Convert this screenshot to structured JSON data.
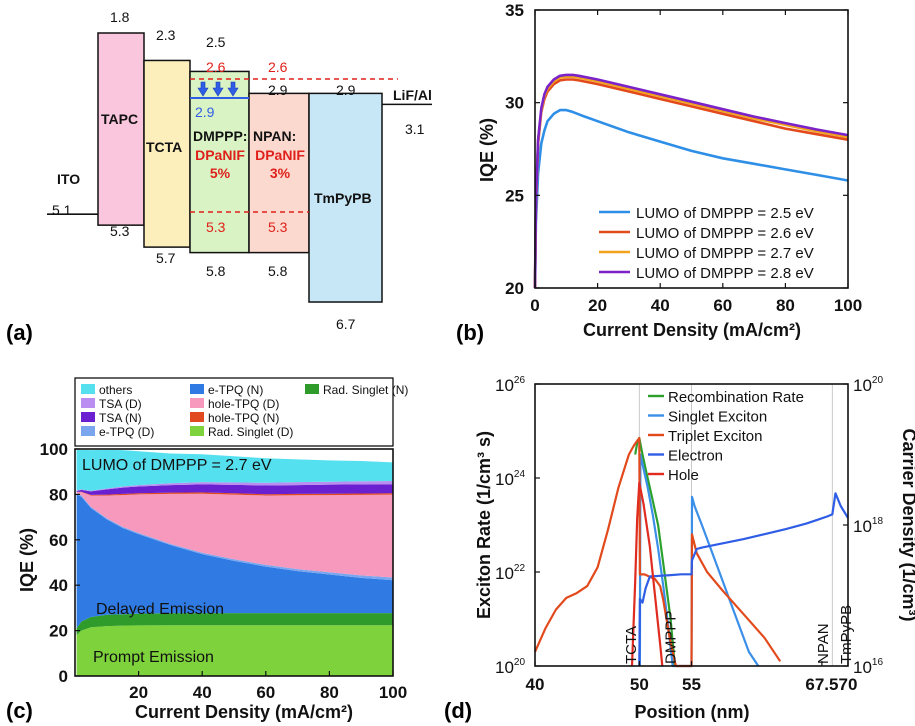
{
  "panel_labels": {
    "a": "(a)",
    "b": "(b)",
    "c": "(c)",
    "d": "(d)"
  },
  "chart_data": [
    {
      "panel": "a",
      "type": "diagram",
      "title": "Energy level diagram",
      "unit": "eV",
      "layers": [
        {
          "name": "ITO",
          "work_function": "5.1",
          "fill": ""
        },
        {
          "name": "TAPC",
          "top": "1.8",
          "bottom": "5.3",
          "fill": "#f9c6dd"
        },
        {
          "name": "TCTA",
          "top": "2.3",
          "bottom": "5.7",
          "fill": "#fcefbc"
        },
        {
          "name": "DMPPP:",
          "dopant": "DPaNIF",
          "conc": "5%",
          "top": "2.5",
          "bottom": "5.8",
          "dopant_lumo": "2.6",
          "dopant_homo": "5.3",
          "host_lumo_alt": "2.9",
          "fill": "#d9f3c5"
        },
        {
          "name": "NPAN:",
          "dopant": "DPaNIF",
          "conc": "3%",
          "top": "2.9",
          "bottom": "5.8",
          "dopant_lumo": "2.6",
          "dopant_homo": "5.3",
          "fill": "#fbd9cf"
        },
        {
          "name": "TmPyPB",
          "top": "2.9",
          "bottom": "6.7",
          "fill": "#c7e6f6"
        },
        {
          "name": "LiF/Al",
          "work_function": "3.1",
          "fill": ""
        }
      ],
      "colors": {
        "dopant": "#e0201b",
        "transfer": "#2f5de6"
      }
    },
    {
      "panel": "b",
      "type": "line",
      "xlabel": "Current Density (mA/cm²)",
      "ylabel": "IQE (%)",
      "xlim": [
        0,
        100
      ],
      "ylim": [
        20,
        35
      ],
      "xticks": [
        0,
        20,
        40,
        60,
        80,
        100
      ],
      "yticks": [
        20,
        25,
        30,
        35
      ],
      "series": [
        {
          "name": "LUMO of DMPPP = 2.5 eV",
          "color": "#2f8fe6",
          "x": [
            0,
            0.3,
            1,
            2,
            3,
            4,
            6,
            8,
            10,
            12,
            15,
            20,
            30,
            40,
            50,
            60,
            70,
            80,
            90,
            100
          ],
          "y": [
            20,
            23.5,
            26.2,
            27.8,
            28.5,
            29.0,
            29.4,
            29.6,
            29.6,
            29.5,
            29.3,
            29.0,
            28.4,
            27.9,
            27.4,
            27.0,
            26.7,
            26.4,
            26.1,
            25.8
          ]
        },
        {
          "name": "LUMO of DMPPP = 2.6 eV",
          "color": "#e24a1c",
          "x": [
            0,
            0.3,
            1,
            2,
            3,
            4,
            6,
            8,
            10,
            12,
            14,
            20,
            30,
            40,
            50,
            60,
            70,
            80,
            90,
            100
          ],
          "y": [
            20,
            24.5,
            27.8,
            29.5,
            30.2,
            30.6,
            31.0,
            31.2,
            31.25,
            31.25,
            31.2,
            31.0,
            30.6,
            30.2,
            29.8,
            29.4,
            29.0,
            28.6,
            28.3,
            28.0
          ]
        },
        {
          "name": "LUMO of DMPPP = 2.7 eV",
          "color": "#f2a21b",
          "x": [
            0,
            0.3,
            1,
            2,
            3,
            4,
            6,
            8,
            10,
            12,
            14,
            20,
            30,
            40,
            50,
            60,
            70,
            80,
            90,
            100
          ],
          "y": [
            20,
            24.6,
            27.9,
            29.6,
            30.35,
            30.75,
            31.15,
            31.35,
            31.4,
            31.4,
            31.35,
            31.15,
            30.75,
            30.35,
            29.95,
            29.55,
            29.15,
            28.8,
            28.45,
            28.15
          ]
        },
        {
          "name": "LUMO of DMPPP = 2.8 eV",
          "color": "#7b22c8",
          "x": [
            0,
            0.3,
            1,
            2,
            3,
            4,
            6,
            8,
            10,
            12,
            14,
            20,
            30,
            40,
            50,
            60,
            70,
            80,
            90,
            100
          ],
          "y": [
            20,
            24.7,
            28.0,
            29.7,
            30.45,
            30.85,
            31.25,
            31.45,
            31.5,
            31.5,
            31.45,
            31.25,
            30.85,
            30.45,
            30.05,
            29.65,
            29.25,
            28.9,
            28.55,
            28.25
          ]
        }
      ]
    },
    {
      "panel": "c",
      "type": "area",
      "xlabel": "Current Density (mA/cm²)",
      "ylabel": "IQE (%)",
      "xlim": [
        0,
        100
      ],
      "ylim": [
        0,
        100
      ],
      "xticks": [
        20,
        40,
        60,
        80,
        100
      ],
      "yticks": [
        0,
        20,
        40,
        60,
        80,
        100
      ],
      "annotation": "LUMO of DMPPP = 2.7 eV",
      "region_labels": [
        "Delayed Emission",
        "Prompt Emission"
      ],
      "x": [
        0.5,
        2,
        5,
        10,
        15,
        20,
        30,
        40,
        50,
        60,
        70,
        80,
        90,
        100
      ],
      "series": [
        {
          "name": "Rad. Singlet (D)",
          "color": "#7ed33c",
          "values": [
            18,
            20,
            21.5,
            22,
            22.2,
            22.3,
            22.4,
            22.4,
            22.4,
            22.4,
            22.4,
            22.4,
            22.4,
            22.4
          ]
        },
        {
          "name": "Rad. Singlet (N)",
          "color": "#2e9b2b",
          "values": [
            3,
            4,
            4.5,
            5,
            5,
            5.2,
            5.3,
            5.3,
            5.3,
            5.3,
            5.3,
            5.3,
            5.3,
            5.3
          ]
        },
        {
          "name": "e-TPQ (N)",
          "color": "#2f7be3",
          "values": [
            59,
            55,
            48,
            42,
            38,
            35,
            30,
            26,
            23,
            20.5,
            18.5,
            17,
            15.5,
            14.5
          ]
        },
        {
          "name": "e-TPQ (D)",
          "color": "#7aa6f0",
          "values": [
            0.5,
            0.5,
            0.5,
            0.5,
            0.5,
            0.5,
            0.5,
            0.6,
            0.7,
            0.8,
            0.9,
            1.0,
            1.1,
            1.2
          ]
        },
        {
          "name": "hole-TPQ (D)",
          "color": "#f799bd",
          "values": [
            0.5,
            1.5,
            5,
            10,
            14,
            17,
            22,
            26,
            28.5,
            30.5,
            32.5,
            34,
            35.5,
            36.5
          ]
        },
        {
          "name": "hole-TPQ (N)",
          "color": "#e04a1e",
          "values": [
            0.1,
            0.2,
            0.3,
            0.4,
            0.5,
            0.5,
            0.6,
            0.6,
            0.6,
            0.6,
            0.6,
            0.6,
            0.6,
            0.6
          ]
        },
        {
          "name": "TSA (N)",
          "color": "#6a1fd0",
          "values": [
            0.4,
            0.8,
            1.5,
            2.3,
            2.8,
            3.0,
            3.3,
            3.5,
            3.7,
            3.8,
            3.9,
            4.0,
            4.0,
            4.0
          ]
        },
        {
          "name": "TSA (D)",
          "color": "#b98ef0",
          "values": [
            0.2,
            0.2,
            0.3,
            0.4,
            0.5,
            0.6,
            0.8,
            1.0,
            1.1,
            1.2,
            1.3,
            1.3,
            1.4,
            1.4
          ]
        },
        {
          "name": "others",
          "color": "#55e0f0",
          "values": [
            17.8,
            17.4,
            17.9,
            17.0,
            16.0,
            14.9,
            13.1,
            12.3,
            11.5,
            10.8,
            10.0,
            9.4,
            8.9,
            8.2
          ]
        }
      ],
      "legend": [
        "others",
        "e-TPQ (N)",
        "Rad. Singlet (N)",
        "TSA (D)",
        "hole-TPQ (D)",
        "TSA (N)",
        "hole-TPQ (N)",
        "e-TPQ (D)",
        "Rad. Singlet (D)"
      ]
    },
    {
      "panel": "d",
      "type": "line",
      "xlabel": "Position (nm)",
      "ylabel": "Exciton Rate (1/cm³ s)",
      "ylabel_right": "Carrier Density (1/cm³)",
      "x_axis": [
        40,
        70
      ],
      "xticks": [
        40,
        50,
        55,
        67.5,
        70
      ],
      "xtick_labels": [
        "40",
        "50",
        "55",
        "67.5",
        "70"
      ],
      "y_left_log": [
        20,
        26
      ],
      "y_left_ticks": [
        {
          "base": "10",
          "exp": "20",
          "v": 20
        },
        {
          "base": "10",
          "exp": "22",
          "v": 22
        },
        {
          "base": "10",
          "exp": "24",
          "v": 24
        },
        {
          "base": "10",
          "exp": "26",
          "v": 26
        }
      ],
      "y_right_log": [
        16,
        20
      ],
      "y_right_ticks": [
        {
          "base": "10",
          "exp": "16",
          "v": 16
        },
        {
          "base": "10",
          "exp": "18",
          "v": 18
        },
        {
          "base": "10",
          "exp": "20",
          "v": 20
        }
      ],
      "layer_boundaries": [
        50,
        55,
        68.5
      ],
      "layer_labels": [
        {
          "text": "TCTA",
          "x": 49.2
        },
        {
          "text": "DMPPP",
          "x": 53.0
        },
        {
          "text": "NPAN",
          "x": 67.6
        },
        {
          "text": "TmPyPB",
          "x": 69.8
        }
      ],
      "series": [
        {
          "name": "Recombination Rate",
          "color": "#2ca02c",
          "axis": "left",
          "x": [
            49.6,
            49.8,
            50,
            50.3,
            50.7,
            51.2,
            51.8,
            52.4,
            53.0,
            53.4
          ],
          "y": [
            24.5,
            24.75,
            24.85,
            24.5,
            24.1,
            23.6,
            23.0,
            22.0,
            21.0,
            20
          ]
        },
        {
          "name": "Singlet Exciton",
          "color": "#3b8fe8",
          "axis": "left",
          "x": [
            50.05,
            50.1,
            50.4,
            50.8,
            51.3,
            51.8,
            52.3,
            52.8,
            53.2,
            55.0,
            55.05,
            55.3,
            56,
            57,
            58,
            59,
            60.5,
            61.4
          ],
          "y": [
            20,
            24.5,
            24.2,
            23.8,
            23.2,
            22.5,
            21.7,
            20.8,
            20,
            20,
            23.6,
            23.4,
            23.0,
            22.4,
            21.8,
            21.2,
            20.3,
            20
          ]
        },
        {
          "name": "Triplet Exciton",
          "color": "#e24a1c",
          "axis": "left",
          "x": [
            40,
            41,
            42,
            43,
            44,
            45,
            46,
            47,
            48,
            49,
            49.5,
            50,
            50.05,
            50.5,
            51,
            51.5,
            52,
            52.3,
            52.6,
            53,
            53.5,
            54,
            55,
            55.05,
            55.5,
            56.5,
            58,
            60,
            62,
            63.5
          ],
          "y": [
            20.3,
            20.8,
            21.2,
            21.45,
            21.55,
            21.7,
            22.1,
            22.9,
            23.8,
            24.5,
            24.7,
            24.85,
            21.95,
            21.95,
            21.9,
            21.85,
            21.7,
            21.4,
            21.0,
            20.5,
            20,
            20,
            20,
            22.8,
            22.4,
            22.0,
            21.6,
            21.1,
            20.6,
            20.1
          ]
        },
        {
          "name": "Electron",
          "color": "#2f5de6",
          "axis": "right",
          "x": [
            50,
            50.05,
            50.3,
            50.6,
            51,
            52,
            53,
            54,
            54.8,
            55,
            55.05,
            55.5,
            56,
            58,
            60,
            62,
            64,
            66,
            67,
            68,
            68.5,
            68.8,
            69.3,
            70
          ],
          "y": [
            16,
            16.95,
            16.9,
            17.1,
            17.27,
            17.28,
            17.29,
            17.3,
            17.3,
            17.3,
            17.5,
            17.66,
            17.68,
            17.74,
            17.8,
            17.87,
            17.94,
            18.02,
            18.07,
            18.12,
            18.15,
            18.45,
            18.27,
            18.1
          ]
        },
        {
          "name": "Hole",
          "color": "#e02b20",
          "axis": "right",
          "x": [
            49.3,
            49.6,
            49.8,
            50,
            50.4,
            51,
            51.5,
            52,
            52.2
          ],
          "y": [
            16,
            17.2,
            18.1,
            18.6,
            18.3,
            17.7,
            17.0,
            16.3,
            16
          ]
        }
      ]
    }
  ]
}
